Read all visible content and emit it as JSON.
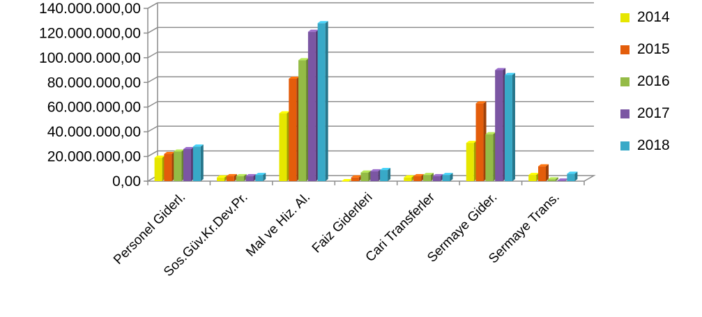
{
  "chart_data": {
    "type": "bar",
    "categories": [
      "Personel Giderl.",
      "Sos.Güv.Kr.Dev.Pr.",
      "Mal ve Hiz. Al.",
      "Faiz Giderleri",
      "Cari Transferler",
      "Sermaye Gider.",
      "Sermaye Trans."
    ],
    "series": [
      {
        "name": "2014",
        "color": "#e6e600",
        "values": [
          19000000,
          3000000,
          55000000,
          0,
          3000000,
          31000000,
          5000000
        ]
      },
      {
        "name": "2015",
        "color": "#e35d0b",
        "values": [
          22000000,
          4000000,
          83000000,
          3000000,
          4000000,
          63000000,
          12000000
        ]
      },
      {
        "name": "2016",
        "color": "#94bb46",
        "values": [
          24000000,
          4000000,
          98000000,
          7000000,
          5000000,
          38000000,
          1500000
        ]
      },
      {
        "name": "2017",
        "color": "#7b56a3",
        "values": [
          26000000,
          4000000,
          121000000,
          8000000,
          4000000,
          90000000,
          500000
        ]
      },
      {
        "name": "2018",
        "color": "#38a9c7",
        "values": [
          28000000,
          5000000,
          128000000,
          9000000,
          5000000,
          86000000,
          6000000
        ]
      }
    ],
    "y_ticks": [
      "0,00",
      "20.000.000,00",
      "40.000.000,00",
      "60.000.000,00",
      "80.000.000,00",
      "100.000.000,00",
      "120.000.000,00",
      "140.000.000,00"
    ],
    "ylim": [
      0,
      140000000
    ],
    "grid": true,
    "legend_position": "right"
  }
}
